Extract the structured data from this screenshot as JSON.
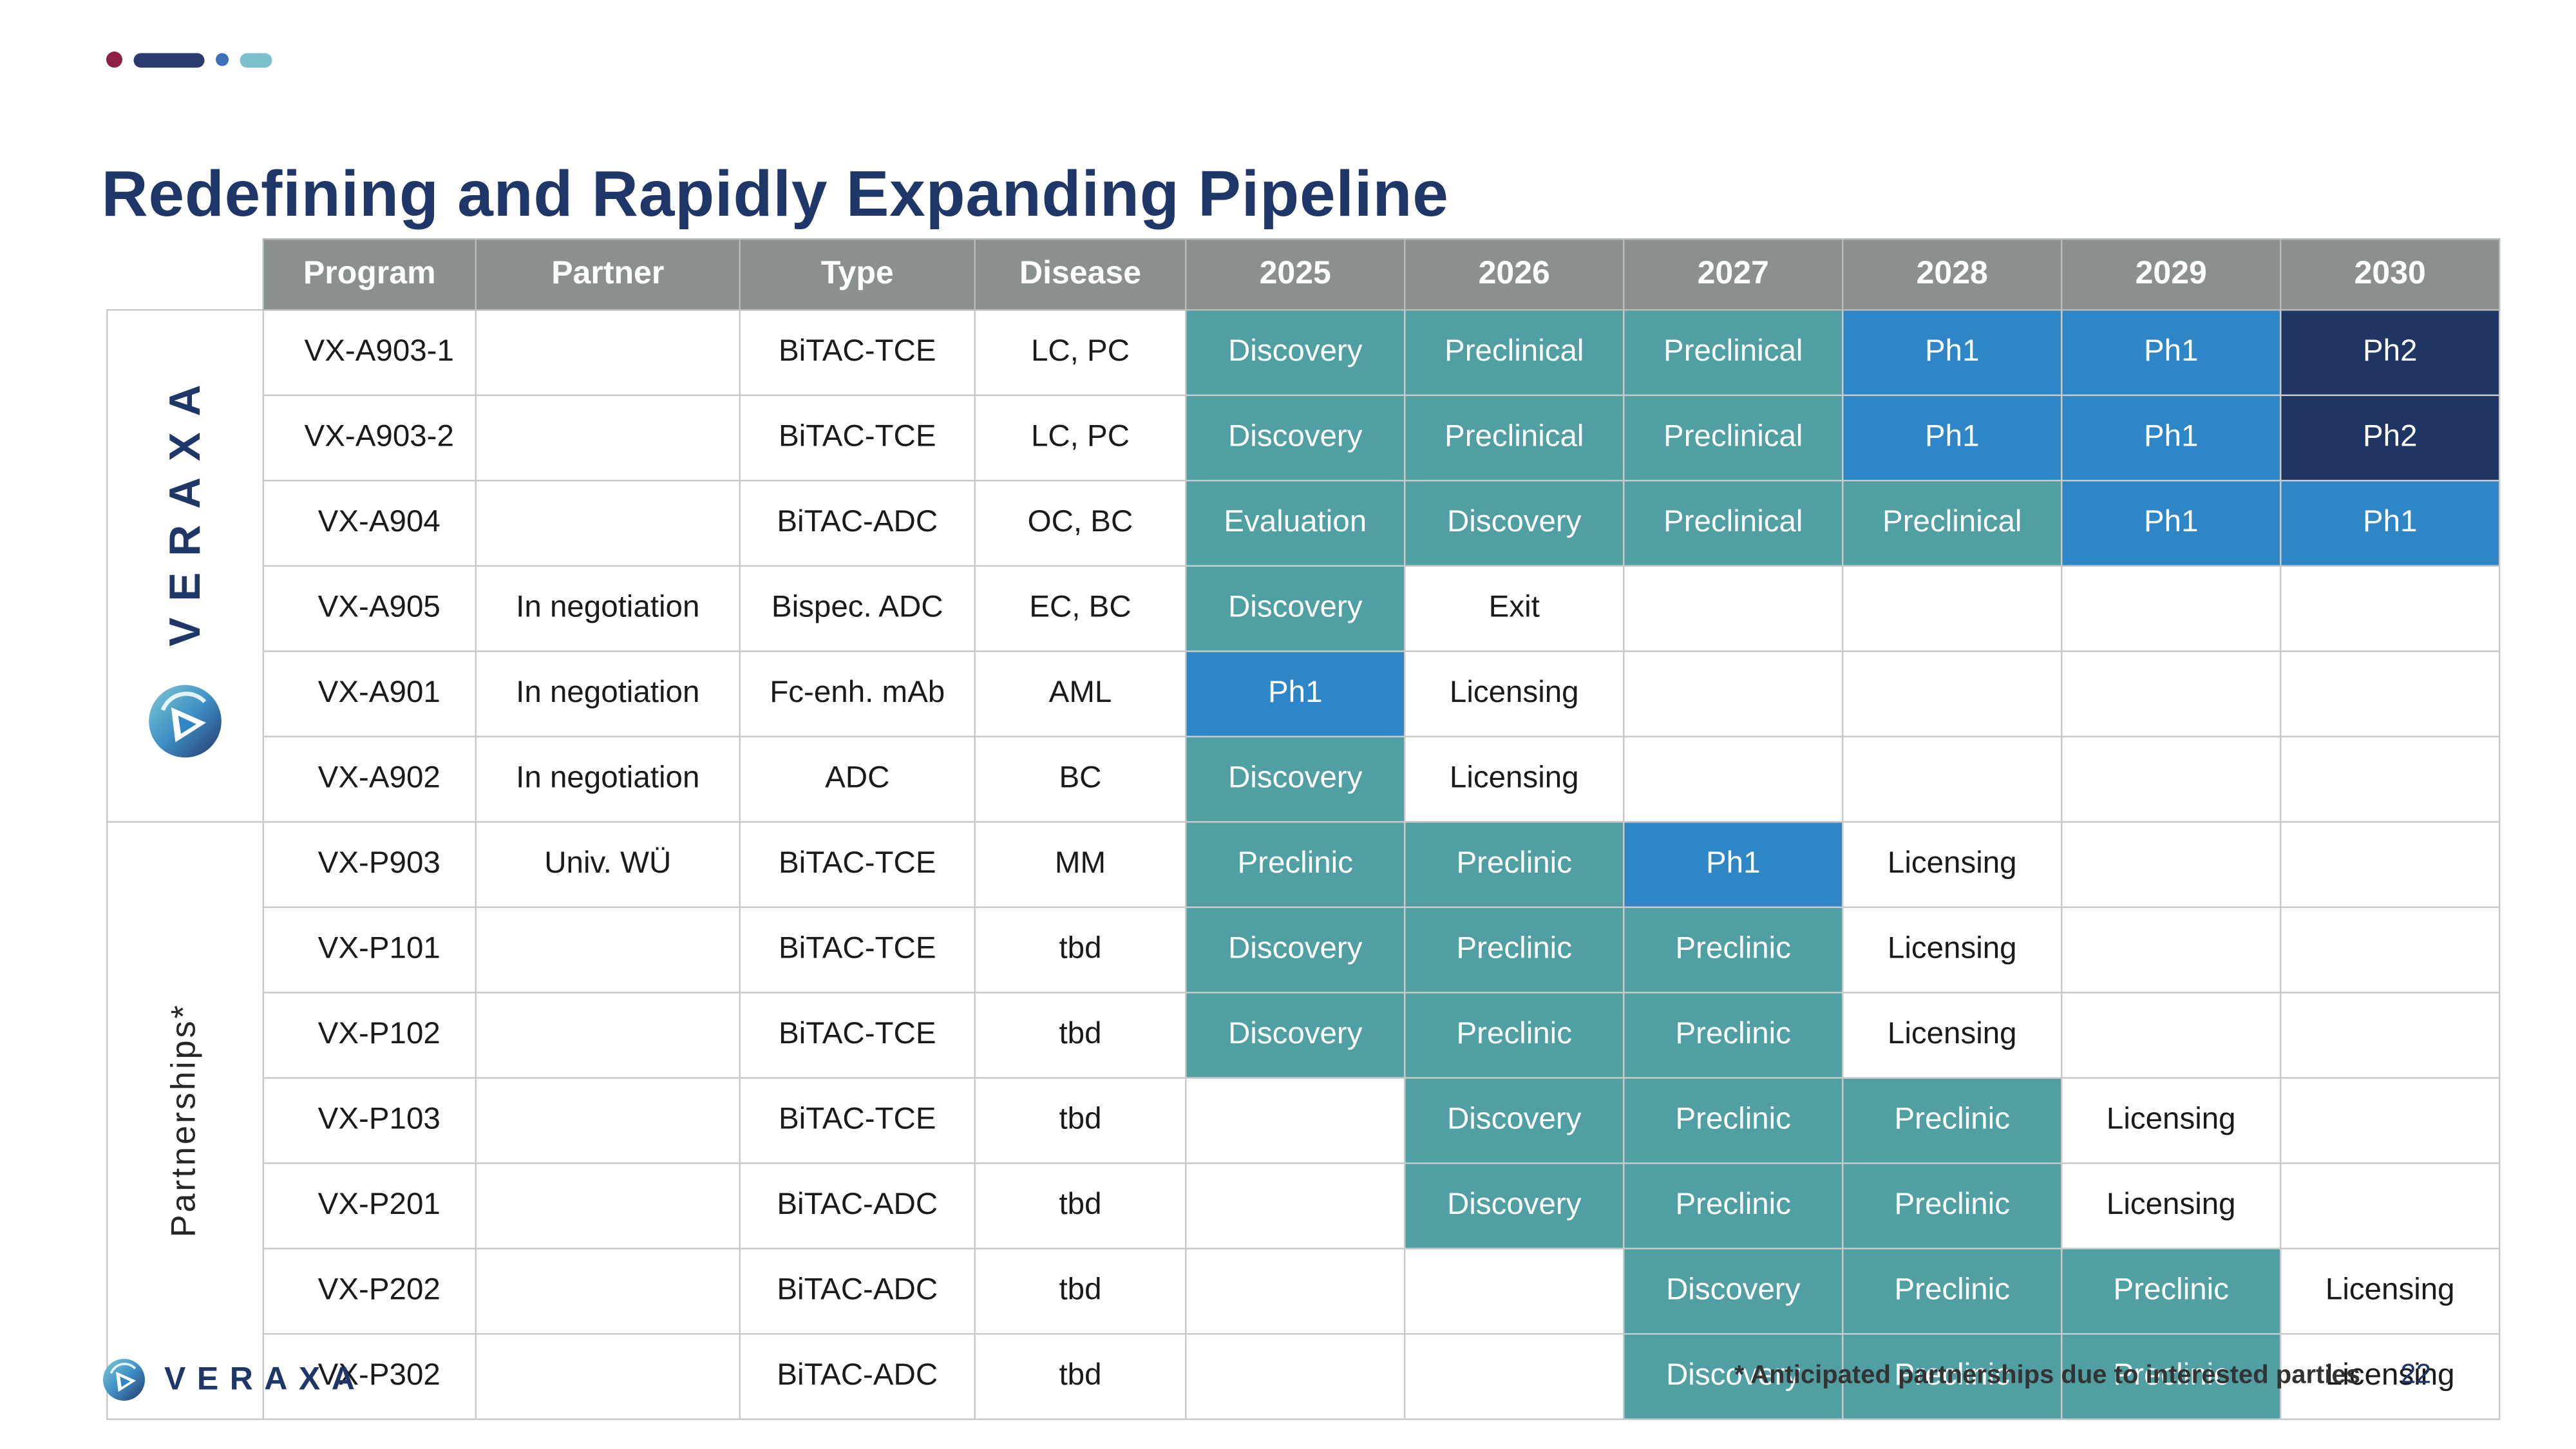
{
  "slide": {
    "title": "Redefining and Rapidly Expanding Pipeline",
    "footnote": "* Anticipated partnerships due to interested parties",
    "page_number": "22",
    "footer_brand": "VERAXA"
  },
  "colors": {
    "accent_navy": "#1E3668",
    "header_bg": "#8A8F8F",
    "stage_teal": "#4F9FA3",
    "stage_blue": "#2E86C6",
    "stage_dark_navy": "#1F3564"
  },
  "table": {
    "headers": [
      "Program",
      "Partner",
      "Type",
      "Disease",
      "2025",
      "2026",
      "2027",
      "2028",
      "2029",
      "2030"
    ],
    "groups": [
      {
        "id": "veraxa",
        "label": "VERAXA",
        "has_logo": true,
        "rows": [
          {
            "program": "VX-A903-1",
            "partner": "",
            "type": "BiTAC-TCE",
            "disease": "LC, PC",
            "years": [
              {
                "label": "Discovery",
                "kind": "teal"
              },
              {
                "label": "Preclinical",
                "kind": "teal"
              },
              {
                "label": "Preclinical",
                "kind": "teal"
              },
              {
                "label": "Ph1",
                "kind": "blue"
              },
              {
                "label": "Ph1",
                "kind": "blue"
              },
              {
                "label": "Ph2",
                "kind": "navy"
              }
            ]
          },
          {
            "program": "VX-A903-2",
            "partner": "",
            "type": "BiTAC-TCE",
            "disease": "LC, PC",
            "years": [
              {
                "label": "Discovery",
                "kind": "teal"
              },
              {
                "label": "Preclinical",
                "kind": "teal"
              },
              {
                "label": "Preclinical",
                "kind": "teal"
              },
              {
                "label": "Ph1",
                "kind": "blue"
              },
              {
                "label": "Ph1",
                "kind": "blue"
              },
              {
                "label": "Ph2",
                "kind": "navy"
              }
            ]
          },
          {
            "program": "VX-A904",
            "partner": "",
            "type": "BiTAC-ADC",
            "disease": "OC, BC",
            "years": [
              {
                "label": "Evaluation",
                "kind": "teal"
              },
              {
                "label": "Discovery",
                "kind": "teal"
              },
              {
                "label": "Preclinical",
                "kind": "teal"
              },
              {
                "label": "Preclinical",
                "kind": "teal"
              },
              {
                "label": "Ph1",
                "kind": "blue"
              },
              {
                "label": "Ph1",
                "kind": "blue"
              }
            ]
          },
          {
            "program": "VX-A905",
            "partner": "In negotiation",
            "type": "Bispec. ADC",
            "disease": "EC, BC",
            "years": [
              {
                "label": "Discovery",
                "kind": "teal"
              },
              {
                "label": "Exit",
                "kind": "plain"
              },
              null,
              null,
              null,
              null
            ]
          },
          {
            "program": "VX-A901",
            "partner": "In negotiation",
            "type": "Fc-enh. mAb",
            "disease": "AML",
            "years": [
              {
                "label": "Ph1",
                "kind": "blue"
              },
              {
                "label": "Licensing",
                "kind": "plain"
              },
              null,
              null,
              null,
              null
            ]
          },
          {
            "program": "VX-A902",
            "partner": "In negotiation",
            "type": "ADC",
            "disease": "BC",
            "years": [
              {
                "label": "Discovery",
                "kind": "teal"
              },
              {
                "label": "Licensing",
                "kind": "plain"
              },
              null,
              null,
              null,
              null
            ]
          }
        ]
      },
      {
        "id": "partnerships",
        "label": "Partnerships*",
        "has_logo": false,
        "rows": [
          {
            "program": "VX-P903",
            "partner": "Univ. WÜ",
            "type": "BiTAC-TCE",
            "disease": "MM",
            "years": [
              {
                "label": "Preclinic",
                "kind": "teal"
              },
              {
                "label": "Preclinic",
                "kind": "teal"
              },
              {
                "label": "Ph1",
                "kind": "blue"
              },
              {
                "label": "Licensing",
                "kind": "plain"
              },
              null,
              null
            ]
          },
          {
            "program": "VX-P101",
            "partner": "",
            "type": "BiTAC-TCE",
            "disease": "tbd",
            "years": [
              {
                "label": "Discovery",
                "kind": "teal"
              },
              {
                "label": "Preclinic",
                "kind": "teal"
              },
              {
                "label": "Preclinic",
                "kind": "teal"
              },
              {
                "label": "Licensing",
                "kind": "plain"
              },
              null,
              null
            ]
          },
          {
            "program": "VX-P102",
            "partner": "",
            "type": "BiTAC-TCE",
            "disease": "tbd",
            "years": [
              {
                "label": "Discovery",
                "kind": "teal"
              },
              {
                "label": "Preclinic",
                "kind": "teal"
              },
              {
                "label": "Preclinic",
                "kind": "teal"
              },
              {
                "label": "Licensing",
                "kind": "plain"
              },
              null,
              null
            ]
          },
          {
            "program": "VX-P103",
            "partner": "",
            "type": "BiTAC-TCE",
            "disease": "tbd",
            "years": [
              null,
              {
                "label": "Discovery",
                "kind": "teal"
              },
              {
                "label": "Preclinic",
                "kind": "teal"
              },
              {
                "label": "Preclinic",
                "kind": "teal"
              },
              {
                "label": "Licensing",
                "kind": "plain"
              },
              null
            ]
          },
          {
            "program": "VX-P201",
            "partner": "",
            "type": "BiTAC-ADC",
            "disease": "tbd",
            "years": [
              null,
              {
                "label": "Discovery",
                "kind": "teal"
              },
              {
                "label": "Preclinic",
                "kind": "teal"
              },
              {
                "label": "Preclinic",
                "kind": "teal"
              },
              {
                "label": "Licensing",
                "kind": "plain"
              },
              null
            ]
          },
          {
            "program": "VX-P202",
            "partner": "",
            "type": "BiTAC-ADC",
            "disease": "tbd",
            "years": [
              null,
              null,
              {
                "label": "Discovery",
                "kind": "teal"
              },
              {
                "label": "Preclinic",
                "kind": "teal"
              },
              {
                "label": "Preclinic",
                "kind": "teal"
              },
              {
                "label": "Licensing",
                "kind": "plain"
              }
            ]
          },
          {
            "program": "VX-P302",
            "partner": "",
            "type": "BiTAC-ADC",
            "disease": "tbd",
            "years": [
              null,
              null,
              {
                "label": "Discovery",
                "kind": "teal"
              },
              {
                "label": "Preclinic",
                "kind": "teal"
              },
              {
                "label": "Preclinic",
                "kind": "teal"
              },
              {
                "label": "Licensing",
                "kind": "plain"
              }
            ]
          }
        ]
      }
    ]
  }
}
